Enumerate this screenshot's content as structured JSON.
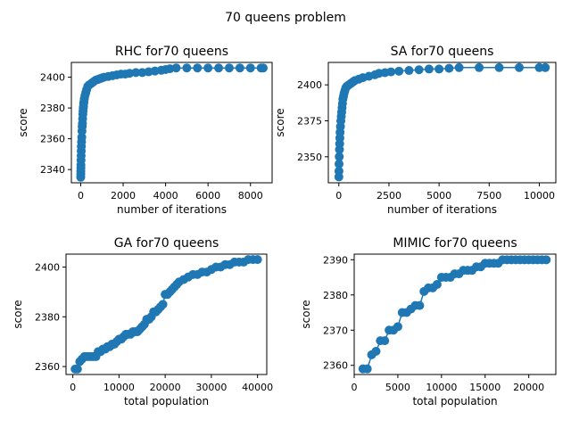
{
  "figure_title": "70 queens problem",
  "series_color": "#1f77b4",
  "chart_data": [
    {
      "type": "line",
      "title": "RHC for70 queens",
      "xlabel": "number of iterations",
      "ylabel": "score",
      "xlim": [
        -440,
        9020
      ],
      "ylim": [
        2331.4,
        2409.6
      ],
      "xticks": [
        0,
        2000,
        4000,
        6000,
        8000
      ],
      "yticks": [
        2340,
        2360,
        2380,
        2400
      ],
      "markers": true,
      "grid": false,
      "x": [
        1,
        3,
        5,
        8,
        10,
        15,
        20,
        25,
        30,
        40,
        50,
        60,
        70,
        80,
        90,
        100,
        110,
        120,
        130,
        140,
        150,
        170,
        200,
        240,
        280,
        330,
        400,
        500,
        600,
        700,
        800,
        900,
        1000,
        1100,
        1300,
        1500,
        1700,
        1900,
        2100,
        2300,
        2600,
        2900,
        3200,
        3500,
        3800,
        4000,
        4200,
        4500,
        5000,
        5500,
        6000,
        6500,
        7000,
        7500,
        8000,
        8500,
        8600
      ],
      "y": [
        2335,
        2337,
        2339,
        2341,
        2343,
        2346,
        2349,
        2352,
        2355,
        2358,
        2361,
        2365,
        2368,
        2370,
        2373,
        2376,
        2378,
        2380,
        2381,
        2383,
        2384,
        2386,
        2388,
        2390,
        2392,
        2394,
        2395,
        2396,
        2397,
        2398,
        2398.5,
        2399,
        2399.5,
        2400,
        2400.5,
        2401,
        2401.5,
        2402,
        2402,
        2402.5,
        2403,
        2403,
        2403.5,
        2404,
        2404.5,
        2405,
        2405.5,
        2406,
        2406,
        2406,
        2406,
        2406,
        2406,
        2406,
        2406,
        2406,
        2406
      ]
    },
    {
      "type": "line",
      "title": "SA for70 queens",
      "xlabel": "number of iterations",
      "ylabel": "score",
      "xlim": [
        -525,
        10825
      ],
      "ylim": [
        2331.9,
        2415.6
      ],
      "xticks": [
        0,
        2500,
        5000,
        7500,
        10000
      ],
      "yticks": [
        2350,
        2375,
        2400
      ],
      "markers": true,
      "grid": false,
      "x": [
        1,
        5,
        10,
        20,
        30,
        40,
        50,
        60,
        80,
        100,
        120,
        140,
        160,
        180,
        200,
        230,
        260,
        300,
        350,
        400,
        500,
        600,
        700,
        800,
        1000,
        1200,
        1500,
        1800,
        2000,
        2300,
        2600,
        3000,
        3500,
        4000,
        4500,
        5000,
        5500,
        6000,
        7000,
        8000,
        9000,
        10000,
        10300
      ],
      "y": [
        2336,
        2340,
        2345,
        2350,
        2355,
        2359,
        2363,
        2367,
        2371,
        2375,
        2378,
        2381,
        2384,
        2387,
        2390,
        2392,
        2394,
        2396,
        2398,
        2399,
        2400,
        2401,
        2402,
        2403,
        2404,
        2405,
        2406,
        2407,
        2408,
        2408.5,
        2409,
        2409.5,
        2410,
        2410.5,
        2411,
        2411,
        2411.5,
        2412,
        2412,
        2412,
        2412,
        2412,
        2412
      ]
    },
    {
      "type": "line",
      "title": "GA for70 queens",
      "xlabel": "total population",
      "ylabel": "score",
      "xlim": [
        -1475,
        42000
      ],
      "ylim": [
        2356.8,
        2405.2
      ],
      "xticks": [
        0,
        10000,
        20000,
        30000,
        40000
      ],
      "yticks": [
        2360,
        2380,
        2400
      ],
      "markers": true,
      "grid": false,
      "x": [
        500,
        1000,
        1500,
        2000,
        2500,
        3000,
        3500,
        4000,
        4500,
        5000,
        5500,
        6000,
        6500,
        7000,
        7500,
        8000,
        8500,
        9000,
        9500,
        10000,
        10500,
        11000,
        11500,
        12000,
        12500,
        13000,
        13500,
        14000,
        14500,
        15000,
        15500,
        16000,
        16500,
        17000,
        17500,
        18000,
        18500,
        19000,
        19500,
        20000,
        20500,
        21000,
        21500,
        22000,
        22500,
        23000,
        24000,
        25000,
        26000,
        27000,
        28000,
        29000,
        30000,
        31000,
        32000,
        33000,
        34000,
        35000,
        36000,
        37000,
        38000,
        39000,
        40000
      ],
      "y": [
        2359,
        2359,
        2362,
        2363,
        2364,
        2364,
        2364,
        2364,
        2364,
        2364,
        2366,
        2366,
        2367,
        2367,
        2368,
        2368,
        2369,
        2369,
        2370,
        2371,
        2371,
        2372,
        2373,
        2373,
        2373,
        2374,
        2374,
        2374,
        2375,
        2376,
        2377,
        2379,
        2379,
        2380,
        2382,
        2382,
        2383,
        2384,
        2385,
        2389,
        2389,
        2390,
        2391,
        2392,
        2393,
        2394,
        2395,
        2396,
        2397,
        2397,
        2398,
        2398,
        2399,
        2400,
        2400,
        2401,
        2401,
        2402,
        2402,
        2402,
        2403,
        2403,
        2403
      ]
    },
    {
      "type": "line",
      "title": "MIMIC for70 queens",
      "xlabel": "total population",
      "ylabel": "score",
      "xlim": [
        0,
        23100
      ],
      "ylim": [
        2357.4,
        2391.6
      ],
      "xticks": [
        0,
        5000,
        10000,
        15000,
        20000
      ],
      "yticks": [
        2360,
        2370,
        2380,
        2390
      ],
      "markers": true,
      "grid": false,
      "x": [
        1000,
        1500,
        2000,
        2500,
        3000,
        3500,
        4000,
        4500,
        5000,
        5500,
        6000,
        6500,
        7000,
        7500,
        8000,
        8500,
        9000,
        9500,
        10000,
        10500,
        11000,
        11500,
        12000,
        12500,
        13000,
        13500,
        14000,
        14500,
        15000,
        15500,
        16000,
        16500,
        17000,
        17500,
        18000,
        18500,
        19000,
        19500,
        20000,
        20500,
        21000,
        21500,
        22000
      ],
      "y": [
        2359,
        2359,
        2363,
        2364,
        2367,
        2367,
        2370,
        2370,
        2371,
        2375,
        2375,
        2376,
        2377,
        2377,
        2381,
        2382,
        2382,
        2383,
        2385,
        2385,
        2385,
        2386,
        2386,
        2387,
        2387,
        2387,
        2388,
        2388,
        2389,
        2389,
        2389,
        2389,
        2390,
        2390,
        2390,
        2390,
        2390,
        2390,
        2390,
        2390,
        2390,
        2390,
        2390
      ]
    }
  ]
}
